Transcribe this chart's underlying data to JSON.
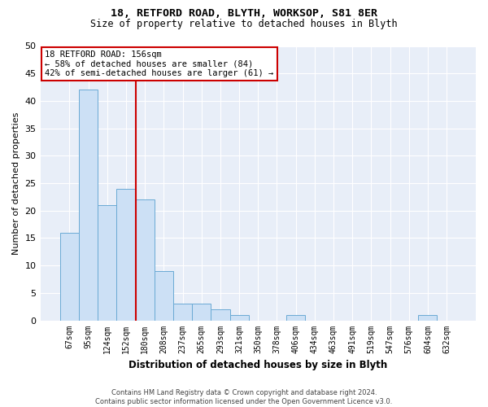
{
  "title1": "18, RETFORD ROAD, BLYTH, WORKSOP, S81 8ER",
  "title2": "Size of property relative to detached houses in Blyth",
  "xlabel": "Distribution of detached houses by size in Blyth",
  "ylabel": "Number of detached properties",
  "categories": [
    "67sqm",
    "95sqm",
    "124sqm",
    "152sqm",
    "180sqm",
    "208sqm",
    "237sqm",
    "265sqm",
    "293sqm",
    "321sqm",
    "350sqm",
    "378sqm",
    "406sqm",
    "434sqm",
    "463sqm",
    "491sqm",
    "519sqm",
    "547sqm",
    "576sqm",
    "604sqm",
    "632sqm"
  ],
  "values": [
    16,
    42,
    21,
    24,
    22,
    9,
    3,
    3,
    2,
    1,
    0,
    0,
    1,
    0,
    0,
    0,
    0,
    0,
    0,
    1,
    0
  ],
  "bar_color": "#cce0f5",
  "bar_edgecolor": "#6aaad4",
  "vline_x": 3.5,
  "vline_color": "#cc0000",
  "annotation_title": "18 RETFORD ROAD: 156sqm",
  "annotation_line1": "← 58% of detached houses are smaller (84)",
  "annotation_line2": "42% of semi-detached houses are larger (61) →",
  "annotation_box_edgecolor": "#cc0000",
  "ylim": [
    0,
    50
  ],
  "yticks": [
    0,
    5,
    10,
    15,
    20,
    25,
    30,
    35,
    40,
    45,
    50
  ],
  "footer1": "Contains HM Land Registry data © Crown copyright and database right 2024.",
  "footer2": "Contains public sector information licensed under the Open Government Licence v3.0.",
  "fig_bg_color": "#ffffff",
  "plot_bg_color": "#e8eef8"
}
